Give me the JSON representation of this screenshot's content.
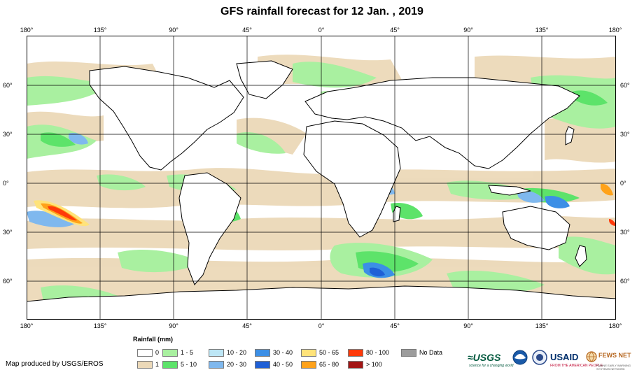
{
  "title": "GFS rainfall forecast for 12 Jan. , 2019",
  "axes": {
    "longitude_labels": [
      "180°",
      "135°",
      "90°",
      "45°",
      "0°",
      "45°",
      "90°",
      "135°",
      "180°"
    ],
    "latitude_labels": [
      "60°",
      "30°",
      "0°",
      "30°",
      "60°"
    ]
  },
  "legend": {
    "title": "Rainfall (mm)",
    "items": [
      {
        "label": "0",
        "color": "#ffffff"
      },
      {
        "label": "1",
        "color": "#ecd9b8"
      },
      {
        "label": "1 - 5",
        "color": "#a9f0a0"
      },
      {
        "label": "5 - 10",
        "color": "#5de36a"
      },
      {
        "label": "10 - 20",
        "color": "#bde6f5"
      },
      {
        "label": "20 - 30",
        "color": "#7fb8ee"
      },
      {
        "label": "30 - 40",
        "color": "#3c8fe6"
      },
      {
        "label": "40 - 50",
        "color": "#1f5fd6"
      },
      {
        "label": "50 - 65",
        "color": "#ffe37a"
      },
      {
        "label": "65 - 80",
        "color": "#ffa21a"
      },
      {
        "label": "80 - 100",
        "color": "#ff3a0a"
      },
      {
        "label": "> 100",
        "color": "#a31515"
      },
      {
        "label": "No Data",
        "color": "#9c9c9c"
      }
    ]
  },
  "credit": "Map produced by USGS/EROS",
  "logos": {
    "usgs": "≈USGS",
    "usgs_tagline": "science for a changing world",
    "usaid": "USAID",
    "usaid_tagline": "FROM THE AMERICAN PEOPLE",
    "fews": "FEWS NET",
    "fews_tagline": "FAMINE EARLY WARNING SYSTEMS NETWORK"
  },
  "colors": {
    "ocean": "#ffffff",
    "light_rain": "#ecd9b8",
    "coast": "#000000",
    "grid": "#000000"
  }
}
